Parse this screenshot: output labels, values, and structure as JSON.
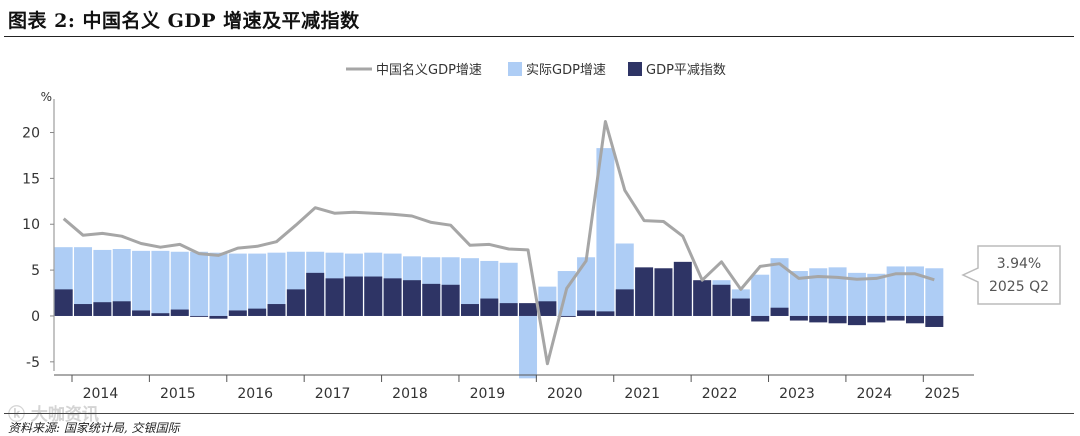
{
  "header": {
    "title": "图表 2: 中国名义 GDP 增速及平减指数"
  },
  "footer": {
    "source": "资料来源: 国家统计局, 交银国际",
    "watermark": "ⓚ 大咖资讯"
  },
  "chart_data": {
    "type": "bar",
    "stacked": true,
    "y_unit": "%",
    "ylim": [
      -6,
      23
    ],
    "yticks": [
      -5,
      0,
      5,
      10,
      15,
      20
    ],
    "grid": false,
    "legend_position": "top-center",
    "colors": {
      "line": "#a6a6a6",
      "real": "#aecdf5",
      "deflator": "#2e3465"
    },
    "x_groups": [
      "2014",
      "2015",
      "2016",
      "2017",
      "2018",
      "2019",
      "2020",
      "2021",
      "2022",
      "2023",
      "2024",
      "2025"
    ],
    "quarters": [
      "2014Q1",
      "2014Q2",
      "2014Q3",
      "2014Q4",
      "2015Q1",
      "2015Q2",
      "2015Q3",
      "2015Q4",
      "2016Q1",
      "2016Q2",
      "2016Q3",
      "2016Q4",
      "2017Q1",
      "2017Q2",
      "2017Q3",
      "2017Q4",
      "2018Q1",
      "2018Q2",
      "2018Q3",
      "2018Q4",
      "2019Q1",
      "2019Q2",
      "2019Q3",
      "2019Q4",
      "2020Q1",
      "2020Q2",
      "2020Q3",
      "2020Q4",
      "2021Q1",
      "2021Q2",
      "2021Q3",
      "2021Q4",
      "2022Q1",
      "2022Q2",
      "2022Q3",
      "2022Q4",
      "2023Q1",
      "2023Q2",
      "2023Q3",
      "2023Q4",
      "2024Q1",
      "2024Q2",
      "2024Q3",
      "2024Q4",
      "2025Q1",
      "2025Q2"
    ],
    "series": [
      {
        "name": "中国名义GDP增速",
        "type": "line",
        "values": [
          10.6,
          8.8,
          9.0,
          8.7,
          7.9,
          7.5,
          7.8,
          6.8,
          6.6,
          7.4,
          7.6,
          8.1,
          9.9,
          11.8,
          11.2,
          11.3,
          11.2,
          11.1,
          10.9,
          10.2,
          9.9,
          7.7,
          7.8,
          7.3,
          7.2,
          -5.2,
          3.0,
          6.0,
          21.2,
          13.7,
          10.4,
          10.3,
          8.7,
          3.9,
          5.9,
          2.9,
          5.4,
          5.7,
          4.1,
          4.3,
          4.2,
          4.0,
          4.1,
          4.6,
          4.6,
          3.94
        ]
      },
      {
        "name": "实际GDP增速",
        "type": "bar",
        "values": [
          7.5,
          7.5,
          7.2,
          7.3,
          7.1,
          7.1,
          7.0,
          7.0,
          6.9,
          6.8,
          6.8,
          6.9,
          7.0,
          7.0,
          6.9,
          6.8,
          6.9,
          6.8,
          6.5,
          6.4,
          6.4,
          6.3,
          6.0,
          5.8,
          -6.8,
          3.2,
          4.9,
          6.4,
          18.3,
          7.9,
          4.9,
          4.0,
          4.8,
          0.4,
          3.9,
          2.9,
          4.5,
          6.3,
          4.9,
          5.2,
          5.3,
          4.7,
          4.6,
          5.4,
          5.4,
          5.2
        ]
      },
      {
        "name": "GDP平减指数",
        "type": "bar",
        "values": [
          2.9,
          1.3,
          1.5,
          1.6,
          0.6,
          0.3,
          0.7,
          -0.1,
          -0.3,
          0.6,
          0.8,
          1.3,
          2.9,
          4.7,
          4.1,
          4.3,
          4.3,
          4.1,
          3.9,
          3.5,
          3.4,
          1.3,
          1.9,
          1.4,
          1.4,
          1.6,
          -0.1,
          0.6,
          0.5,
          2.9,
          5.3,
          5.2,
          5.9,
          3.9,
          3.4,
          1.9,
          -0.6,
          0.9,
          -0.5,
          -0.7,
          -0.8,
          -1.0,
          -0.7,
          -0.5,
          -0.8,
          -1.2
        ]
      }
    ],
    "callout": {
      "value": "3.94%",
      "period": "2025 Q2"
    }
  }
}
